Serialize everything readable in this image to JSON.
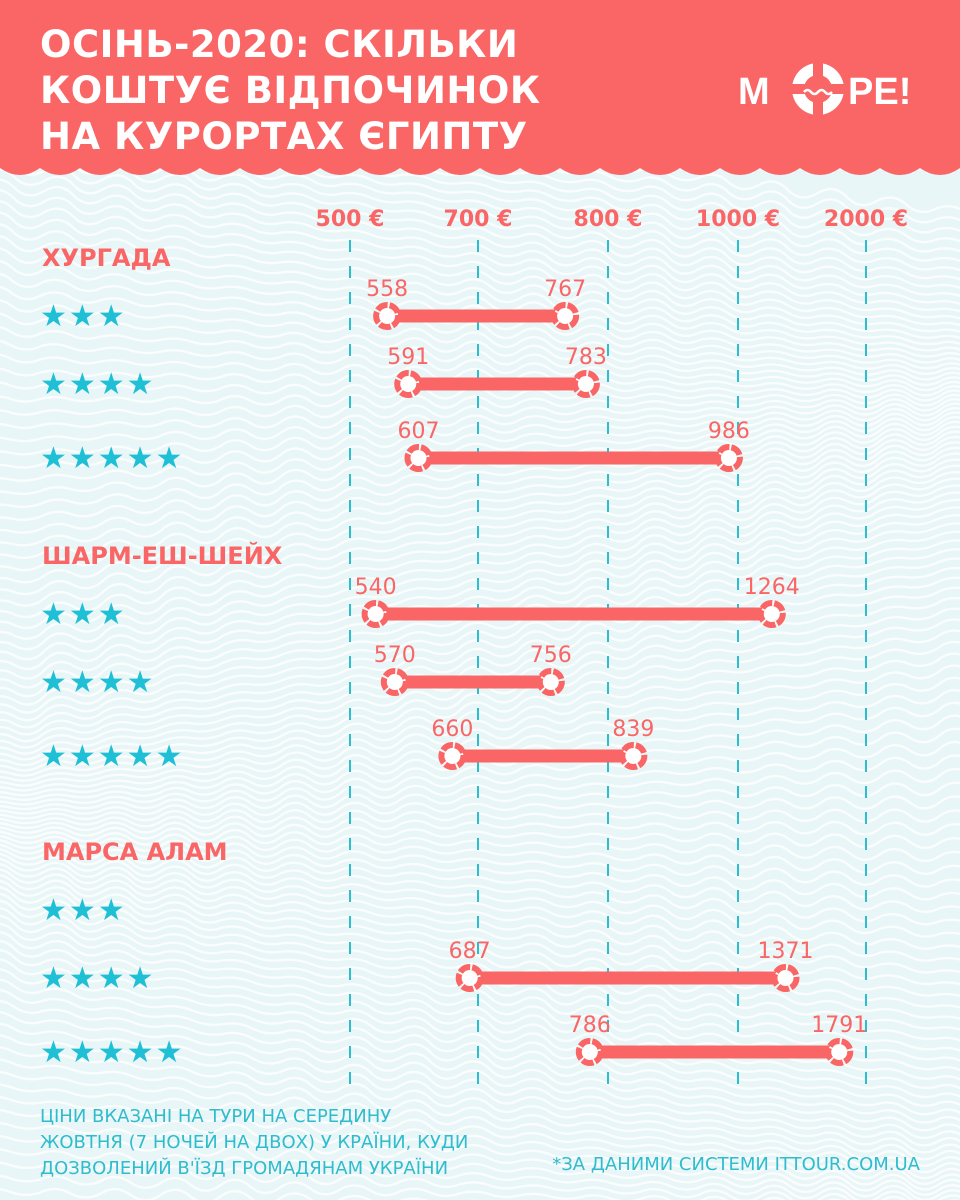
{
  "header": {
    "title_lines": [
      "ОСІНЬ-2020: СКІЛЬКИ",
      "КОШТУЄ ВІДПОЧИНОК",
      "НА КУРОРТАХ ЄГИПТУ"
    ],
    "logo_text_left": "М",
    "logo_text_right": "РЕ!"
  },
  "colors": {
    "accent": "#fa6565",
    "stars": "#1fc0d6",
    "guides": "#2fbccd",
    "background": "#e9f6f8"
  },
  "chart_data": {
    "type": "range-bar",
    "title": "ОСІНЬ-2020: СКІЛЬКИ КОШТУЄ ВІДПОЧИНОК НА КУРОРТАХ ЄГИПТУ",
    "unit": "€",
    "ticks": [
      {
        "value": 500,
        "label": "500 €"
      },
      {
        "value": 700,
        "label": "700 €"
      },
      {
        "value": 800,
        "label": "800 €"
      },
      {
        "value": 1000,
        "label": "1000 €"
      },
      {
        "value": 2000,
        "label": "2000 €"
      }
    ],
    "scale": "piecewise (equal spacing between printed ticks)",
    "groups": [
      {
        "name": "ХУРГАДА",
        "rows": [
          {
            "stars": "★★★",
            "min": 558,
            "max": 767
          },
          {
            "stars": "★★★★",
            "min": 591,
            "max": 783
          },
          {
            "stars": "★★★★★",
            "min": 607,
            "max": 986
          }
        ]
      },
      {
        "name": "ШАРМ-ЕШ-ШЕЙХ",
        "rows": [
          {
            "stars": "★★★",
            "min": 540,
            "max": 1264
          },
          {
            "stars": "★★★★",
            "min": 570,
            "max": 756
          },
          {
            "stars": "★★★★★",
            "min": 660,
            "max": 839
          }
        ]
      },
      {
        "name": "МАРСА АЛАМ",
        "rows": [
          {
            "stars": "★★★",
            "min": null,
            "max": null
          },
          {
            "stars": "★★★★",
            "min": 687,
            "max": 1371
          },
          {
            "stars": "★★★★★",
            "min": 786,
            "max": 1791
          }
        ]
      }
    ]
  },
  "footnote_lines": [
    "ЦІНИ ВКАЗАНІ НА ТУРИ НА СЕРЕДИНУ",
    "ЖОВТНЯ (7 НОЧЕЙ НА ДВОХ) У КРАЇНИ, КУДИ",
    "ДОЗВОЛЕНИЙ В'ЇЗД ГРОМАДЯНАМ УКРАЇНИ"
  ],
  "source": "*ЗА ДАНИМИ СИСТЕМИ ITTOUR.COM.UA"
}
